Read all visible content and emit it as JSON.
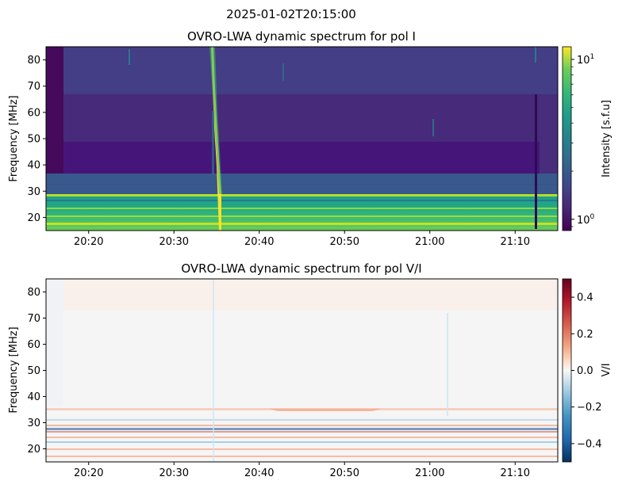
{
  "suptitle": "2025-01-02T20:15:00",
  "chart_data": [
    {
      "type": "heatmap",
      "title": "OVRO-LWA dynamic spectrum for pol I",
      "xlabel": "",
      "ylabel": "Frequency [MHz]",
      "x_tick_labels": [
        "20:20",
        "20:30",
        "20:40",
        "20:50",
        "21:00",
        "21:10"
      ],
      "x_range": [
        "20:15",
        "21:15"
      ],
      "y_ticks": [
        20,
        30,
        40,
        50,
        60,
        70,
        80
      ],
      "ylim": [
        15,
        85
      ],
      "colorbar": {
        "label": "Intensity [s.f.u]",
        "scale": "log",
        "range": [
          0.85,
          12
        ],
        "tick_labels": [
          "10^0",
          "10^1"
        ],
        "colormap": "viridis"
      },
      "features": {
        "low_freq_band_mhz": [
          15,
          28
        ],
        "bright_line_mhz": 28,
        "burst_time": "20:35",
        "burst_freq_mhz": [
          28,
          85
        ]
      }
    },
    {
      "type": "heatmap",
      "title": "OVRO-LWA dynamic spectrum for pol V/I",
      "xlabel": "",
      "ylabel": "Frequency [MHz]",
      "x_tick_labels": [
        "20:20",
        "20:30",
        "20:40",
        "20:50",
        "21:00",
        "21:10"
      ],
      "x_range": [
        "20:15",
        "21:15"
      ],
      "y_ticks": [
        20,
        30,
        40,
        50,
        60,
        70,
        80
      ],
      "ylim": [
        15,
        85
      ],
      "colorbar": {
        "label": "V/I",
        "scale": "linear",
        "range": [
          -0.5,
          0.5
        ],
        "ticks": [
          -0.4,
          -0.2,
          0.0,
          0.2,
          0.4
        ],
        "tick_labels": [
          "−0.4",
          "−0.2",
          "0.0",
          "0.2",
          "0.4"
        ],
        "colormap": "RdBu_r"
      }
    }
  ]
}
